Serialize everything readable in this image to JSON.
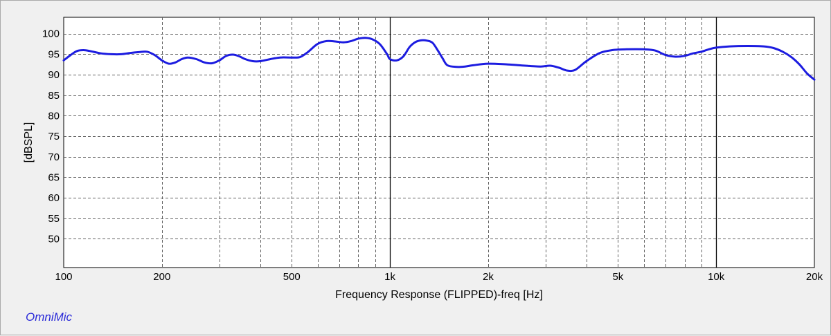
{
  "brand": {
    "text": "OmniMic",
    "color": "#2a2ad8"
  },
  "chart_data": {
    "type": "line",
    "title": "",
    "xlabel": "Frequency Response (FLIPPED)-freq [Hz]",
    "ylabel": "[dBSPL]",
    "x_scale": "log",
    "xlim": [
      100,
      20000
    ],
    "ylim": [
      43,
      104
    ],
    "grid": true,
    "y_ticks": [
      50,
      55,
      60,
      65,
      70,
      75,
      80,
      85,
      90,
      95,
      100
    ],
    "x_tick_labels": [
      {
        "value": 100,
        "label": "100"
      },
      {
        "value": 200,
        "label": "200"
      },
      {
        "value": 500,
        "label": "500"
      },
      {
        "value": 1000,
        "label": "1k"
      },
      {
        "value": 2000,
        "label": "2k"
      },
      {
        "value": 5000,
        "label": "5k"
      },
      {
        "value": 10000,
        "label": "10k"
      },
      {
        "value": 20000,
        "label": "20k"
      }
    ],
    "x_minor_gridlines": [
      200,
      300,
      400,
      500,
      600,
      700,
      800,
      900,
      2000,
      3000,
      4000,
      5000,
      6000,
      7000,
      8000,
      9000
    ],
    "x_major_gridlines": [
      1000,
      10000
    ],
    "line_color": "#1c1ce0",
    "series": [
      {
        "values": [
          [
            100,
            93.5
          ],
          [
            105,
            94.8
          ],
          [
            110,
            95.8
          ],
          [
            115,
            96.0
          ],
          [
            120,
            95.8
          ],
          [
            130,
            95.2
          ],
          [
            140,
            95.0
          ],
          [
            150,
            95.0
          ],
          [
            160,
            95.3
          ],
          [
            170,
            95.5
          ],
          [
            180,
            95.6
          ],
          [
            190,
            94.8
          ],
          [
            200,
            93.5
          ],
          [
            210,
            92.7
          ],
          [
            220,
            93.0
          ],
          [
            230,
            93.8
          ],
          [
            240,
            94.2
          ],
          [
            255,
            93.8
          ],
          [
            270,
            93.0
          ],
          [
            285,
            92.8
          ],
          [
            300,
            93.5
          ],
          [
            315,
            94.6
          ],
          [
            330,
            94.9
          ],
          [
            345,
            94.5
          ],
          [
            360,
            93.8
          ],
          [
            380,
            93.3
          ],
          [
            400,
            93.3
          ],
          [
            430,
            93.8
          ],
          [
            460,
            94.2
          ],
          [
            500,
            94.2
          ],
          [
            530,
            94.3
          ],
          [
            560,
            95.5
          ],
          [
            600,
            97.5
          ],
          [
            640,
            98.2
          ],
          [
            680,
            98.1
          ],
          [
            720,
            97.9
          ],
          [
            760,
            98.2
          ],
          [
            800,
            98.8
          ],
          [
            840,
            99.0
          ],
          [
            880,
            98.7
          ],
          [
            930,
            97.5
          ],
          [
            980,
            95.0
          ],
          [
            1000,
            93.8
          ],
          [
            1050,
            93.5
          ],
          [
            1100,
            94.5
          ],
          [
            1150,
            96.8
          ],
          [
            1200,
            98.0
          ],
          [
            1250,
            98.4
          ],
          [
            1300,
            98.3
          ],
          [
            1350,
            97.8
          ],
          [
            1400,
            96.0
          ],
          [
            1450,
            94.0
          ],
          [
            1500,
            92.3
          ],
          [
            1600,
            91.9
          ],
          [
            1700,
            92.0
          ],
          [
            1800,
            92.3
          ],
          [
            2000,
            92.7
          ],
          [
            2300,
            92.5
          ],
          [
            2600,
            92.2
          ],
          [
            2900,
            92.0
          ],
          [
            3100,
            92.2
          ],
          [
            3300,
            91.7
          ],
          [
            3500,
            91.0
          ],
          [
            3700,
            91.2
          ],
          [
            4000,
            93.3
          ],
          [
            4400,
            95.3
          ],
          [
            4800,
            96.0
          ],
          [
            5300,
            96.2
          ],
          [
            6000,
            96.2
          ],
          [
            6500,
            95.9
          ],
          [
            7000,
            94.8
          ],
          [
            7500,
            94.4
          ],
          [
            8000,
            94.6
          ],
          [
            8500,
            95.2
          ],
          [
            9000,
            95.6
          ],
          [
            9500,
            96.2
          ],
          [
            10000,
            96.6
          ],
          [
            11000,
            96.9
          ],
          [
            12500,
            97.0
          ],
          [
            14000,
            96.9
          ],
          [
            15000,
            96.5
          ],
          [
            16000,
            95.6
          ],
          [
            17000,
            94.3
          ],
          [
            18000,
            92.5
          ],
          [
            19000,
            90.3
          ],
          [
            20000,
            88.8
          ]
        ]
      }
    ]
  }
}
